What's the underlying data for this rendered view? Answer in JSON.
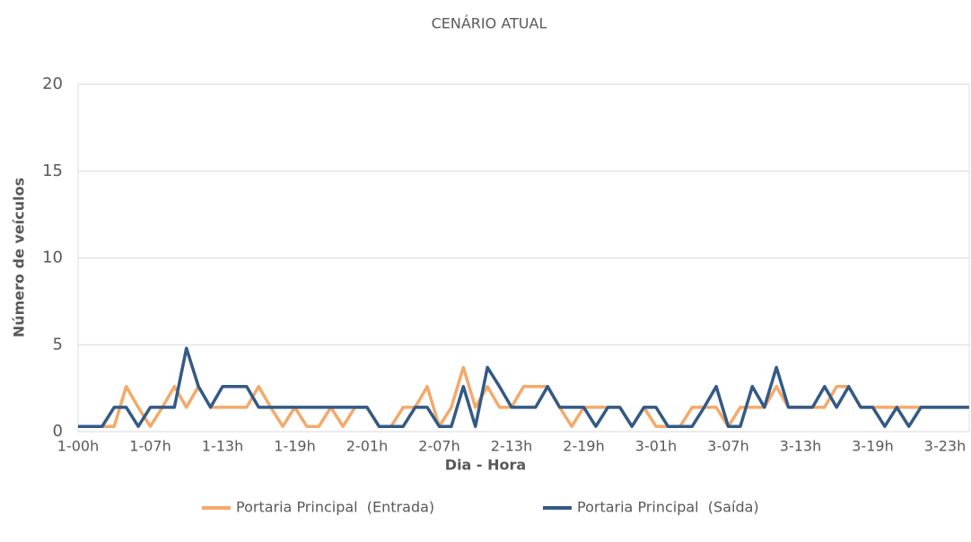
{
  "chart_data": {
    "type": "line",
    "title": "CENÁRIO ATUAL",
    "x_label": "Dia - Hora",
    "y_label": "Número de veículos",
    "categories": [
      "1-00h",
      null,
      null,
      null,
      null,
      null,
      "1-07h",
      null,
      null,
      null,
      null,
      null,
      "1-13h",
      null,
      null,
      null,
      null,
      null,
      "1-19h",
      null,
      null,
      null,
      null,
      null,
      "2-01h",
      null,
      null,
      null,
      null,
      null,
      "2-07h",
      null,
      null,
      null,
      null,
      null,
      "2-13h",
      null,
      null,
      null,
      null,
      null,
      "2-19h",
      null,
      null,
      null,
      null,
      null,
      "3-01h",
      null,
      null,
      null,
      null,
      null,
      "3-07h",
      null,
      null,
      null,
      null,
      null,
      "3-13h",
      null,
      null,
      null,
      null,
      null,
      "3-19h",
      null,
      null,
      null,
      null,
      null,
      "3-23h",
      null,
      null
    ],
    "series": [
      {
        "name": "Portaria Principal  (Entrada)",
        "color": "#f4a96a",
        "values": [
          0.3,
          0.3,
          0.3,
          0.3,
          2.6,
          1.4,
          0.3,
          1.4,
          2.6,
          1.4,
          2.6,
          1.4,
          1.4,
          1.4,
          1.4,
          2.6,
          1.4,
          0.3,
          1.4,
          0.3,
          0.3,
          1.4,
          0.3,
          1.4,
          1.4,
          0.3,
          0.3,
          1.4,
          1.4,
          2.6,
          0.3,
          1.4,
          3.7,
          1.4,
          2.6,
          1.4,
          1.4,
          2.6,
          2.6,
          2.6,
          1.4,
          0.3,
          1.4,
          1.4,
          1.4,
          1.4,
          0.3,
          1.4,
          0.3,
          0.3,
          0.3,
          1.4,
          1.4,
          1.4,
          0.3,
          1.4,
          1.4,
          1.4,
          2.6,
          1.4,
          1.4,
          1.4,
          1.4,
          2.6,
          2.6,
          1.4,
          1.4,
          1.4,
          1.4,
          1.4,
          1.4,
          1.4,
          1.4,
          1.4,
          1.4
        ]
      },
      {
        "name": "Portaria Principal  (Saída)",
        "color": "#335a86",
        "values": [
          0.3,
          0.3,
          0.3,
          1.4,
          1.4,
          0.3,
          1.4,
          1.4,
          1.4,
          4.8,
          2.6,
          1.4,
          2.6,
          2.6,
          2.6,
          1.4,
          1.4,
          1.4,
          1.4,
          1.4,
          1.4,
          1.4,
          1.4,
          1.4,
          1.4,
          0.3,
          0.3,
          0.3,
          1.4,
          1.4,
          0.3,
          0.3,
          2.6,
          0.3,
          3.7,
          2.6,
          1.4,
          1.4,
          1.4,
          2.6,
          1.4,
          1.4,
          1.4,
          0.3,
          1.4,
          1.4,
          0.3,
          1.4,
          1.4,
          0.3,
          0.3,
          0.3,
          1.4,
          2.6,
          0.3,
          0.3,
          2.6,
          1.4,
          3.7,
          1.4,
          1.4,
          1.4,
          2.6,
          1.4,
          2.6,
          1.4,
          1.4,
          0.3,
          1.4,
          0.3,
          1.4,
          1.4,
          1.4,
          1.4,
          1.4
        ]
      }
    ],
    "ylim": [
      0,
      20
    ],
    "yticks": [
      0,
      5,
      10,
      15,
      20
    ],
    "grid": true,
    "legend": "bottom"
  }
}
